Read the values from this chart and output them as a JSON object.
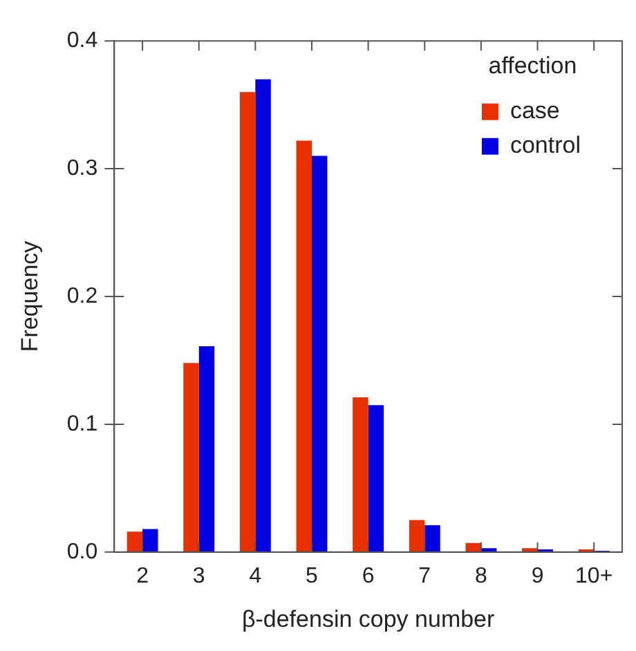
{
  "chart_data": {
    "type": "bar",
    "xlabel": "β-defensin copy number",
    "ylabel": "Frequency",
    "legend_title": "affection",
    "legend": "top right",
    "grid": false,
    "categories": [
      "2",
      "3",
      "4",
      "5",
      "6",
      "7",
      "8",
      "9",
      "10+"
    ],
    "series": [
      {
        "name": "case",
        "color": "#e83000",
        "values": [
          0.016,
          0.148,
          0.36,
          0.322,
          0.121,
          0.025,
          0.007,
          0.003,
          0.002
        ]
      },
      {
        "name": "control",
        "color": "#0000e0",
        "values": [
          0.018,
          0.161,
          0.37,
          0.31,
          0.115,
          0.021,
          0.003,
          0.002,
          0.001
        ]
      }
    ],
    "ylim": [
      0,
      0.4
    ],
    "yticks": [
      {
        "value": 0,
        "label": "0.0"
      },
      {
        "value": 0.1,
        "label": "0.1"
      },
      {
        "value": 0.2,
        "label": "0.2"
      },
      {
        "value": 0.3,
        "label": "0.3"
      },
      {
        "value": 0.4,
        "label": "0.4"
      }
    ]
  }
}
